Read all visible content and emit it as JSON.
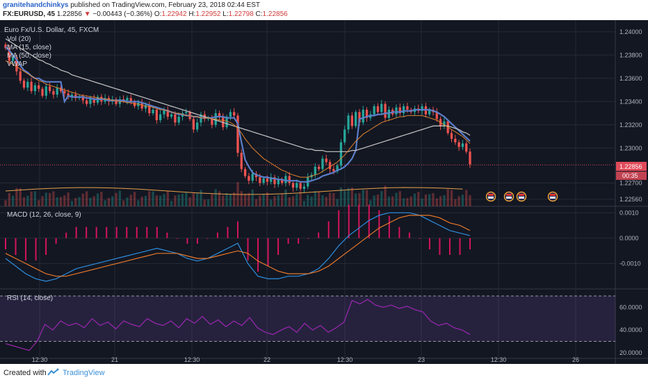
{
  "header": {
    "author": "granitehandchinkys",
    "published": "published on TradingView.com, February 23, 2018 02:44 EST",
    "symbol": "FX:EURUSD, 45",
    "last": "1.22856",
    "arrow": "▼",
    "change": "−0.00443 (−0.36%)",
    "o_label": "O:",
    "o_value": "1.22942",
    "h_label": "H:",
    "h_value": "1.22952",
    "l_label": "L:",
    "l_value": "1.22798",
    "c_label": "C:",
    "c_value": "1.22856"
  },
  "legend": {
    "title": "Euro Fx/U.S. Dollar, 45, FXCM",
    "vol": "Vol (20)",
    "ma15": "MA (15, close)",
    "ma50": "MA (50, close)",
    "vwap": "VWAP"
  },
  "macd_legend": "MACD (12, 26, close, 9)",
  "rsi_legend": "RSI (14, close)",
  "price_badge": "1.22856",
  "countdown": "00:35",
  "footer": {
    "created": "Created with",
    "brand": "TradingView"
  },
  "colors": {
    "bg": "#131722",
    "up": "#26a69a",
    "down": "#ef5350",
    "ma15": "#5b7ec9",
    "ma50": "#c7c7c7",
    "vwap": "#e0812e",
    "macd": "#2d8fe0",
    "signal": "#e8782a",
    "hist": "#d4145a",
    "rsi": "#9c27b0",
    "badge": "#e04b5a"
  },
  "chart_data": [
    {
      "type": "candlestick",
      "title": "Euro Fx/U.S. Dollar, 45, FXCM",
      "y_ticks": [
        "1.24000",
        "1.23800",
        "1.23600",
        "1.23400",
        "1.23200",
        "1.23000",
        "1.22700",
        "1.22560"
      ],
      "ylim": [
        1.225,
        1.241
      ],
      "x_ticks": [
        "12:30",
        "21",
        "12:30",
        "22",
        "12:30",
        "23",
        "12:30",
        "26"
      ],
      "last_price": 1.22856,
      "close": [
        1.2386,
        1.2375,
        1.2378,
        1.2366,
        1.2358,
        1.2352,
        1.2357,
        1.2349,
        1.2354,
        1.2351,
        1.2345,
        1.2353,
        1.2349,
        1.2346,
        1.2352,
        1.2349,
        1.2347,
        1.2344,
        1.2346,
        1.2343,
        1.2344,
        1.2341,
        1.2338,
        1.2343,
        1.2339,
        1.2344,
        1.234,
        1.2343,
        1.234,
        1.2342,
        1.2338,
        1.2342,
        1.2341,
        1.2343,
        1.234,
        1.2336,
        1.2339,
        1.2334,
        1.2337,
        1.233,
        1.2333,
        1.2324,
        1.2329,
        1.2333,
        1.2327,
        1.2329,
        1.2322,
        1.2327,
        1.233,
        1.2331,
        1.2325,
        1.2316,
        1.2322,
        1.2329,
        1.2325,
        1.2326,
        1.232,
        1.233,
        1.2327,
        1.2318,
        1.2327,
        1.2331,
        1.2328,
        1.2296,
        1.2282,
        1.2276,
        1.2272,
        1.2278,
        1.2275,
        1.227,
        1.2274,
        1.2271,
        1.2275,
        1.2269,
        1.2273,
        1.227,
        1.2276,
        1.227,
        1.2266,
        1.227,
        1.2265,
        1.2267,
        1.2275,
        1.2277,
        1.2284,
        1.2282,
        1.2291,
        1.2288,
        1.2282,
        1.228,
        1.2285,
        1.2305,
        1.2316,
        1.2328,
        1.2319,
        1.2331,
        1.2322,
        1.2333,
        1.2326,
        1.2329,
        1.2336,
        1.2331,
        1.2338,
        1.2326,
        1.2333,
        1.2329,
        1.2335,
        1.233,
        1.2336,
        1.2333,
        1.2331,
        1.2334,
        1.2332,
        1.2336,
        1.2329,
        1.2333,
        1.2331,
        1.2325,
        1.2319,
        1.2323,
        1.2313,
        1.2308,
        1.2305,
        1.2301,
        1.2304,
        1.2297,
        1.2286
      ],
      "series": [
        {
          "name": "MA (15, close)",
          "values": [
            1.2387,
            1.2384,
            1.238,
            1.2376,
            1.2371,
            1.2367,
            1.2365,
            1.2362,
            1.236,
            1.236,
            1.2358,
            1.2357,
            1.2357,
            1.2357,
            1.2357,
            1.2357,
            1.234,
            1.2345,
            1.2344,
            1.2344,
            1.2344,
            1.2344,
            1.2343,
            1.2343,
            1.2342,
            1.2342,
            1.2342,
            1.2342,
            1.2341,
            1.2341,
            1.2341,
            1.2341,
            1.2341,
            1.234,
            1.234,
            1.234,
            1.234,
            1.2339,
            1.2338,
            1.2337,
            1.2336,
            1.2335,
            1.2334,
            1.2333,
            1.2332,
            1.2331,
            1.233,
            1.2329,
            1.2329,
            1.2328,
            1.2328,
            1.2327,
            1.2327,
            1.2326,
            1.2326,
            1.2326,
            1.2326,
            1.2327,
            1.2327,
            1.2327,
            1.2326,
            1.2326,
            1.2326,
            1.2321,
            1.2305,
            1.229,
            1.2284,
            1.2279,
            1.2277,
            1.2276,
            1.2275,
            1.2275,
            1.2274,
            1.2274,
            1.2273,
            1.2273,
            1.2272,
            1.2272,
            1.2272,
            1.2272,
            1.2271,
            1.2271,
            1.2271,
            1.2272,
            1.2273,
            1.2274,
            1.2276,
            1.2277,
            1.2278,
            1.2279,
            1.2281,
            1.2282,
            1.2284,
            1.2287,
            1.2291,
            1.2298,
            1.2325,
            1.2326,
            1.2327,
            1.2328,
            1.2328,
            1.2329,
            1.2329,
            1.233,
            1.233,
            1.2331,
            1.2331,
            1.2331,
            1.2332,
            1.2332,
            1.2332,
            1.2333,
            1.2333,
            1.2333,
            1.2333,
            1.2333,
            1.2332,
            1.2331,
            1.2329,
            1.2327,
            1.2324,
            1.2321,
            1.2318,
            1.2315,
            1.2312,
            1.2309,
            1.2306
          ]
        },
        {
          "name": "MA (50, close)",
          "values": [
            1.2394,
            1.2392,
            1.239,
            1.2388,
            1.2386,
            1.2384,
            1.2382,
            1.238,
            1.2378,
            1.2376,
            1.2375,
            1.2373,
            1.2372,
            1.237,
            1.2369,
            1.2367,
            1.2366,
            1.2365,
            1.2363,
            1.2362,
            1.2361,
            1.236,
            1.2359,
            1.2358,
            1.2357,
            1.2356,
            1.2355,
            1.2354,
            1.2353,
            1.2352,
            1.2351,
            1.235,
            1.2349,
            1.2348,
            1.2347,
            1.2346,
            1.2345,
            1.2344,
            1.2343,
            1.2342,
            1.2341,
            1.234,
            1.2339,
            1.2338,
            1.2337,
            1.2336,
            1.2335,
            1.2334,
            1.2333,
            1.2332,
            1.2331,
            1.233,
            1.2329,
            1.2328,
            1.2327,
            1.2326,
            1.2325,
            1.2324,
            1.2323,
            1.2322,
            1.2321,
            1.232,
            1.2319,
            1.2318,
            1.2317,
            1.2316,
            1.2315,
            1.2314,
            1.2313,
            1.2312,
            1.2311,
            1.231,
            1.2309,
            1.2308,
            1.2307,
            1.2306,
            1.2305,
            1.2304,
            1.2303,
            1.2302,
            1.2301,
            1.23,
            1.2299,
            1.2299,
            1.2298,
            1.2298,
            1.2298,
            1.2297,
            1.2297,
            1.2297,
            1.2297,
            1.2297,
            1.2297,
            1.2297,
            1.2298,
            1.2298,
            1.2299,
            1.23,
            1.2301,
            1.2302,
            1.2303,
            1.2304,
            1.2305,
            1.2306,
            1.2307,
            1.2308,
            1.2309,
            1.231,
            1.2311,
            1.2312,
            1.2313,
            1.2314,
            1.2315,
            1.2316,
            1.2317,
            1.2318,
            1.2319,
            1.2319,
            1.2319,
            1.2319,
            1.2319,
            1.2318,
            1.2317,
            1.2316,
            1.2314,
            1.2313,
            1.2311
          ]
        },
        {
          "name": "VWAP",
          "values": [
            1.2375,
            1.2374,
            1.2372,
            1.237,
            1.2368,
            1.2366,
            1.2364,
            1.2362,
            1.236,
            1.2358,
            1.2357,
            1.2355,
            1.2354,
            1.2353,
            1.2352,
            1.2351,
            1.235,
            1.2349,
            1.2348,
            1.2347,
            1.2346,
            1.2345,
            1.2345,
            1.2344,
            1.2344,
            1.2343,
            1.2343,
            1.2342,
            1.2342,
            1.2341,
            1.2341,
            1.234,
            1.234,
            1.2339,
            1.2339,
            1.2338,
            1.2338,
            1.2337,
            1.2336,
            1.2336,
            1.2335,
            1.2334,
            1.2333,
            1.2333,
            1.2332,
            1.2331,
            1.233,
            1.233,
            1.2329,
            1.2328,
            1.2328,
            1.2327,
            1.2327,
            1.2326,
            1.2326,
            1.2326,
            1.2325,
            1.2325,
            1.2324,
            1.2324,
            1.2323,
            1.2322,
            1.232,
            1.2317,
            1.2313,
            1.2308,
            1.2304,
            1.23,
            1.2297,
            1.2294,
            1.2291,
            1.2289,
            1.2287,
            1.2285,
            1.2283,
            1.2281,
            1.228,
            1.2278,
            1.2277,
            1.2276,
            1.2275,
            1.2275,
            1.2275,
            1.2276,
            1.2277,
            1.2278,
            1.228,
            1.2282,
            1.2284,
            1.2286,
            1.2288,
            1.2291,
            1.2294,
            1.2298,
            1.2302,
            1.2306,
            1.2309,
            1.2312,
            1.2314,
            1.2316,
            1.2318,
            1.232,
            1.2322,
            1.2323,
            1.2324,
            1.2325,
            1.2326,
            1.2327,
            1.2327,
            1.2328,
            1.2328,
            1.2328,
            1.2328,
            1.2328,
            1.2327,
            1.2326,
            1.2325,
            1.2324,
            1.2322,
            1.232,
            1.2318,
            1.2316,
            1.2314,
            1.2312,
            1.231,
            1.2307,
            1.2304
          ]
        }
      ]
    },
    {
      "type": "line",
      "title": "MACD (12, 26, close, 9)",
      "y_ticks": [
        "0.0010",
        "0.0000",
        "-0.0010"
      ],
      "ylim": [
        -0.002,
        0.0012
      ],
      "series": [
        {
          "name": "MACD",
          "values": [
            -0.0008,
            -0.0011,
            -0.0014,
            -0.0016,
            -0.0017,
            -0.0016,
            -0.0014,
            -0.0012,
            -0.0011,
            -0.001,
            -0.0009,
            -0.0008,
            -0.0007,
            -0.0006,
            -0.0005,
            -0.0004,
            -0.0005,
            -0.0006,
            -0.0008,
            -0.0009,
            -0.0008,
            -0.0006,
            -0.0004,
            -0.0002,
            -0.001,
            -0.0015,
            -0.0016,
            -0.0016,
            -0.0015,
            -0.0015,
            -0.0014,
            -0.0012,
            -0.0008,
            -0.0003,
            0.0001,
            0.0004,
            0.0007,
            0.0009,
            0.001,
            0.001,
            0.001,
            0.0009,
            0.0007,
            0.0005,
            0.0003,
            0.0002,
            0.0001
          ]
        },
        {
          "name": "Signal",
          "values": [
            -0.0006,
            -0.0008,
            -0.001,
            -0.0012,
            -0.0014,
            -0.0015,
            -0.0015,
            -0.0014,
            -0.0013,
            -0.0012,
            -0.0011,
            -0.001,
            -0.0009,
            -0.0008,
            -0.0007,
            -0.0006,
            -0.0006,
            -0.0006,
            -0.0007,
            -0.0008,
            -0.0008,
            -0.0007,
            -0.0006,
            -0.0005,
            -0.0006,
            -0.0009,
            -0.0011,
            -0.0013,
            -0.0014,
            -0.0014,
            -0.0014,
            -0.0013,
            -0.0011,
            -0.0008,
            -0.0005,
            -0.0002,
            0.0001,
            0.0004,
            0.0006,
            0.0008,
            0.0009,
            0.0009,
            0.0009,
            0.0008,
            0.0006,
            0.0005,
            0.0003
          ]
        }
      ]
    },
    {
      "type": "line",
      "title": "RSI (14, close)",
      "y_ticks": [
        "60.0000",
        "40.0000",
        "20.0000"
      ],
      "ylim": [
        15,
        75
      ],
      "bands": [
        70,
        30
      ],
      "series": [
        {
          "name": "RSI",
          "values": [
            28,
            26,
            24,
            22,
            30,
            45,
            40,
            48,
            44,
            46,
            42,
            50,
            44,
            47,
            41,
            48,
            45,
            43,
            50,
            46,
            44,
            48,
            42,
            50,
            46,
            52,
            45,
            49,
            43,
            48,
            44,
            51,
            42,
            38,
            36,
            40,
            43,
            38,
            46,
            40,
            44,
            38,
            42,
            47,
            66,
            63,
            67,
            62,
            60,
            62,
            59,
            61,
            58,
            56,
            48,
            44,
            46,
            42,
            40,
            36
          ]
        }
      ]
    }
  ]
}
